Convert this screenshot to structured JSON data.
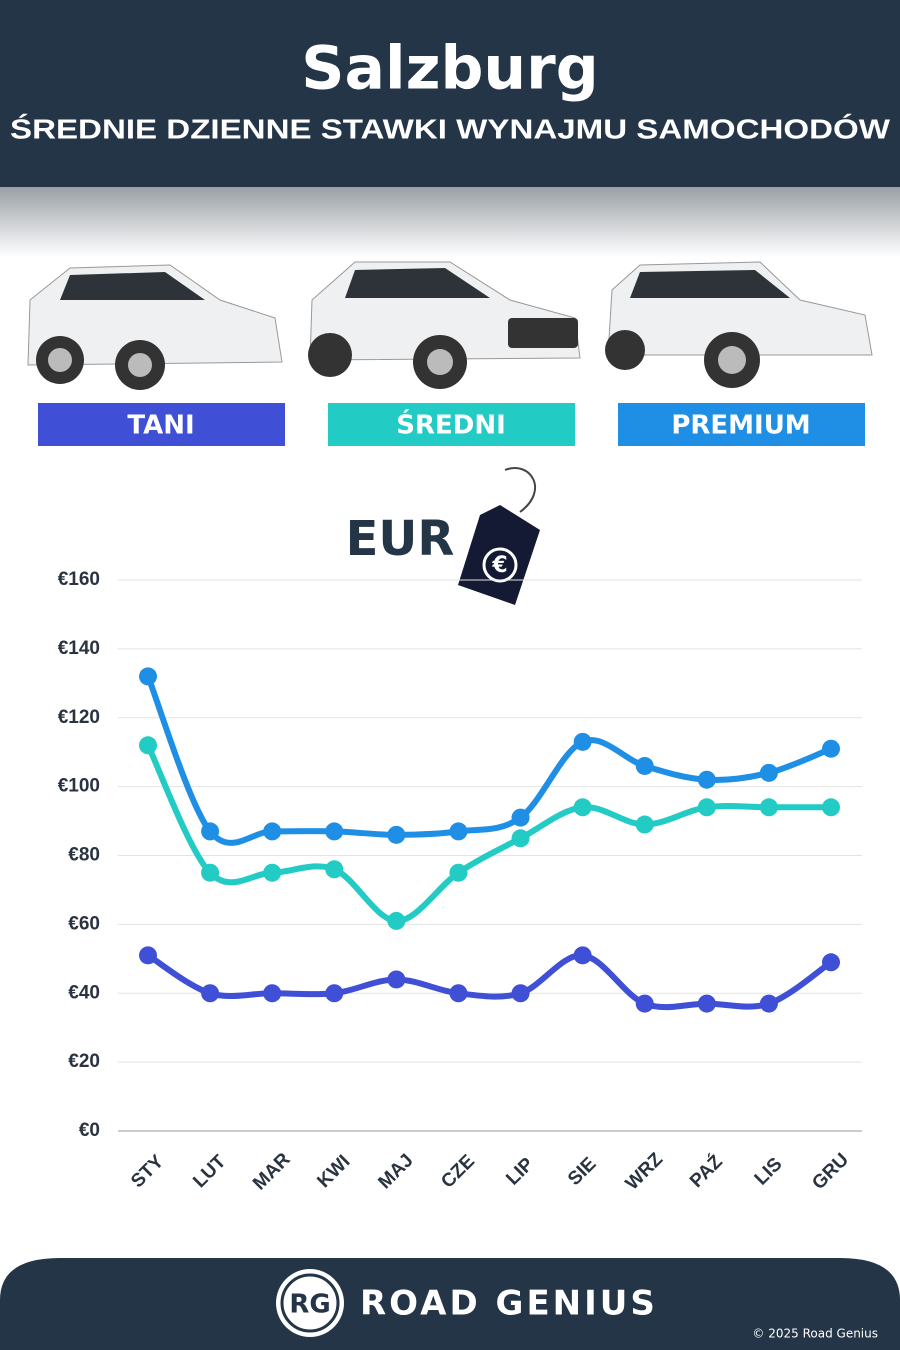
{
  "chart_data": {
    "type": "line",
    "title": "Salzburg",
    "subtitle": "ŚREDNIE DZIENNE STAWKI WYNAJMU SAMOCHODÓW",
    "currency_label": "EUR",
    "categories": [
      "STY",
      "LUT",
      "MAR",
      "KWI",
      "MAJ",
      "CZE",
      "LIP",
      "SIE",
      "WRZ",
      "PAŹ",
      "LIS",
      "GRU"
    ],
    "series": [
      {
        "name": "TANI",
        "color": "#3f4fd6",
        "values": [
          51,
          40,
          40,
          40,
          44,
          40,
          40,
          51,
          37,
          37,
          37,
          49
        ]
      },
      {
        "name": "ŚREDNI",
        "color": "#22cbc4",
        "values": [
          112,
          75,
          75,
          76,
          61,
          75,
          85,
          94,
          89,
          94,
          94,
          94
        ]
      },
      {
        "name": "PREMIUM",
        "color": "#1f8fe6",
        "values": [
          132,
          87,
          87,
          87,
          86,
          87,
          91,
          113,
          106,
          102,
          104,
          111
        ]
      }
    ],
    "ylim": [
      0,
      160
    ],
    "yticks": [
      {
        "value": 0,
        "label": "€0"
      },
      {
        "value": 20,
        "label": "€20"
      },
      {
        "value": 40,
        "label": "€40"
      },
      {
        "value": 60,
        "label": "€60"
      },
      {
        "value": 80,
        "label": "€80"
      },
      {
        "value": 100,
        "label": "€100"
      },
      {
        "value": 120,
        "label": "€120"
      },
      {
        "value": 140,
        "label": "€140"
      },
      {
        "value": 160,
        "label": "€160"
      }
    ],
    "grid": true,
    "footer": {
      "logo": "RG",
      "brand": "ROAD GENIUS",
      "copyright": "© 2025 Road Genius"
    }
  }
}
